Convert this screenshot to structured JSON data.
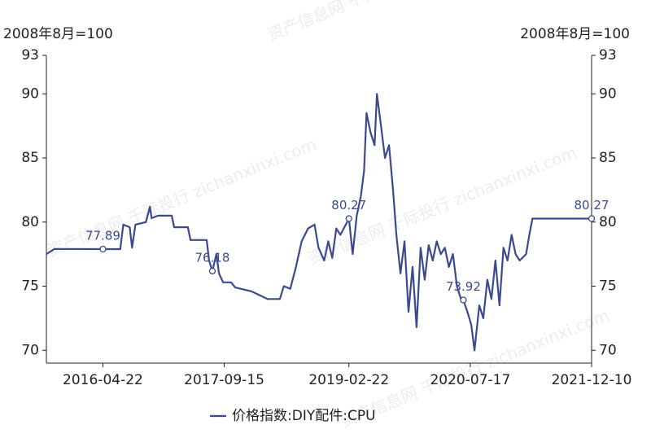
{
  "chart_data": {
    "type": "line",
    "y_label": "2008年8月=100",
    "y2_label": "2008年8月=100",
    "watermark": "资产信息网 千际投行 zichanxinxi.com",
    "xlim": [
      "2015-08-28",
      "2021-12-10"
    ],
    "xticks": [
      "2016-04-22",
      "2017-09-15",
      "2019-02-22",
      "2020-07-17",
      "2021-12-10"
    ],
    "ylim": [
      69,
      93
    ],
    "yticks": [
      70,
      75,
      80,
      85,
      90,
      93
    ],
    "y2lim": [
      69,
      93
    ],
    "y2ticks": [
      70,
      75,
      80,
      85,
      90,
      93
    ],
    "x": [
      "2015-08-28",
      "2015-10-01",
      "2016-04-22",
      "2016-07-04",
      "2016-07-17",
      "2016-08-13",
      "2016-08-23",
      "2016-09-06",
      "2016-10-20",
      "2016-11-06",
      "2016-11-13",
      "2016-12-10",
      "2017-02-06",
      "2017-02-16",
      "2017-04-15",
      "2017-04-26",
      "2017-07-03",
      "2017-07-13",
      "2017-07-27",
      "2017-08-13",
      "2017-08-24",
      "2017-09-10",
      "2017-10-14",
      "2017-10-31",
      "2018-01-07",
      "2018-02-10",
      "2018-03-16",
      "2018-05-07",
      "2018-05-24",
      "2018-06-20",
      "2018-07-14",
      "2018-08-07",
      "2018-09-03",
      "2018-09-30",
      "2018-10-17",
      "2018-11-10",
      "2018-11-27",
      "2018-12-14",
      "2018-12-31",
      "2019-01-17",
      "2019-02-22",
      "2019-03-10",
      "2019-03-27",
      "2019-04-13",
      "2019-04-27",
      "2019-05-07",
      "2019-05-24",
      "2019-06-10",
      "2019-06-20",
      "2019-07-07",
      "2019-07-24",
      "2019-08-10",
      "2019-08-27",
      "2019-09-10",
      "2019-09-27",
      "2019-10-14",
      "2019-10-31",
      "2019-11-17",
      "2019-12-04",
      "2019-12-21",
      "2020-01-07",
      "2020-01-24",
      "2020-02-10",
      "2020-02-27",
      "2020-03-15",
      "2020-04-01",
      "2020-04-18",
      "2020-05-05",
      "2020-05-22",
      "2020-06-08",
      "2020-06-18",
      "2020-07-05",
      "2020-07-21",
      "2020-08-04",
      "2020-08-24",
      "2020-09-10",
      "2020-09-27",
      "2020-10-14",
      "2020-10-31",
      "2020-11-17",
      "2020-12-04",
      "2020-12-21",
      "2021-01-07",
      "2021-01-24",
      "2021-02-10",
      "2021-03-09",
      "2021-03-23",
      "2021-04-05",
      "2021-12-10"
    ],
    "series": [
      {
        "name": "价格指数:DIY配件:CPU",
        "color": "#3b4a8f",
        "values": [
          77.5,
          77.9,
          77.89,
          77.89,
          79.8,
          79.6,
          78.0,
          79.8,
          80.0,
          81.2,
          80.3,
          80.5,
          80.5,
          79.6,
          79.6,
          78.6,
          78.6,
          77.0,
          76.18,
          77.5,
          76.0,
          75.3,
          75.3,
          74.9,
          74.6,
          74.3,
          74.0,
          74.0,
          75.0,
          74.8,
          76.5,
          78.5,
          79.5,
          79.8,
          78.0,
          77.0,
          78.5,
          77.2,
          79.5,
          79.0,
          80.27,
          77.5,
          80.5,
          82.0,
          84.0,
          88.5,
          87.0,
          86.0,
          90.0,
          87.5,
          85.0,
          86.0,
          82.5,
          79.0,
          76.0,
          78.5,
          73.0,
          76.5,
          71.8,
          78.0,
          75.5,
          78.2,
          77.0,
          78.5,
          77.5,
          78.0,
          76.5,
          77.5,
          75.0,
          74.0,
          73.92,
          73.0,
          72.0,
          70.0,
          73.5,
          72.5,
          75.5,
          74.0,
          77.0,
          73.5,
          78.0,
          77.0,
          79.0,
          77.5,
          77.0,
          77.5,
          79.0,
          80.27,
          80.27
        ]
      }
    ],
    "annotations": [
      {
        "x": "2016-04-22",
        "value": 77.89
      },
      {
        "x": "2017-07-27",
        "value": 76.18
      },
      {
        "x": "2019-02-22",
        "value": 80.27
      },
      {
        "x": "2020-06-18",
        "value": 73.92
      },
      {
        "x": "2021-12-10",
        "value": 80.27
      }
    ]
  }
}
